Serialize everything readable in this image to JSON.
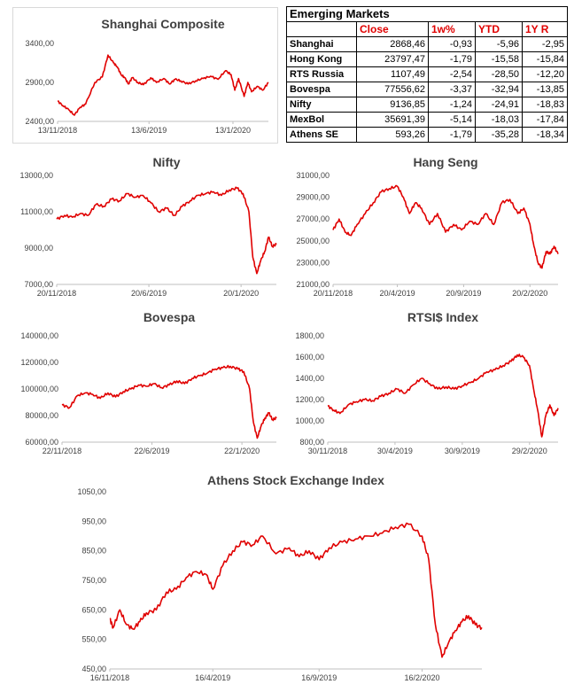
{
  "table": {
    "title": "Emerging Markets",
    "headers": [
      "Close",
      "1w%",
      "YTD",
      "1Y R"
    ],
    "rows": [
      {
        "name": "Shanghai",
        "close": "2868,46",
        "w1": "-0,93",
        "ytd": "-5,96",
        "y1": "-2,95"
      },
      {
        "name": "Hong Kong",
        "close": "23797,47",
        "w1": "-1,79",
        "ytd": "-15,58",
        "y1": "-15,84"
      },
      {
        "name": "RTS Russia",
        "close": "1107,49",
        "w1": "-2,54",
        "ytd": "-28,50",
        "y1": "-12,20"
      },
      {
        "name": "Bovespa",
        "close": "77556,62",
        "w1": "-3,37",
        "ytd": "-32,94",
        "y1": "-13,85"
      },
      {
        "name": "Nifty",
        "close": "9136,85",
        "w1": "-1,24",
        "ytd": "-24,91",
        "y1": "-18,83"
      },
      {
        "name": "MexBol",
        "close": "35691,39",
        "w1": "-5,14",
        "ytd": "-18,03",
        "y1": "-17,84"
      },
      {
        "name": "Athens SE",
        "close": "593,26",
        "w1": "-1,79",
        "ytd": "-35,28",
        "y1": "-18,34"
      }
    ]
  },
  "chart_data": [
    {
      "id": "shanghai",
      "type": "line",
      "title": "Shanghai Composite",
      "color": "#e00000",
      "ylim": [
        2400,
        3400
      ],
      "yticks": [
        "3400,00",
        "2900,00",
        "2400,00"
      ],
      "ytick_values": [
        3400,
        2900,
        2400
      ],
      "xticks": [
        "13/11/2018",
        "13/6/2019",
        "13/1/2020"
      ],
      "xtick_pos": [
        0.0,
        0.49,
        0.94
      ],
      "xlim_frac": [
        0,
        1.13
      ],
      "x": [
        0,
        0.03,
        0.06,
        0.09,
        0.12,
        0.15,
        0.2,
        0.24,
        0.27,
        0.3,
        0.32,
        0.34,
        0.36,
        0.38,
        0.4,
        0.43,
        0.46,
        0.5,
        0.53,
        0.57,
        0.6,
        0.63,
        0.66,
        0.7,
        0.74,
        0.78,
        0.82,
        0.86,
        0.9,
        0.93,
        0.95,
        0.97,
        1.0,
        1.02,
        1.04,
        1.07,
        1.1,
        1.13
      ],
      "values": [
        2660,
        2600,
        2550,
        2480,
        2580,
        2620,
        2900,
        2970,
        3250,
        3150,
        3100,
        3000,
        2960,
        2880,
        2960,
        2900,
        2870,
        2960,
        2900,
        2950,
        2880,
        2940,
        2920,
        2880,
        2920,
        2950,
        2980,
        2940,
        3050,
        3000,
        2800,
        2950,
        2720,
        2900,
        2780,
        2850,
        2800,
        2900
      ]
    },
    {
      "id": "nifty",
      "type": "line",
      "title": "Nifty",
      "color": "#e00000",
      "ylim": [
        7000,
        13000
      ],
      "yticks": [
        "13000,00",
        "11000,00",
        "9000,00",
        "7000,00"
      ],
      "ytick_values": [
        13000,
        11000,
        9000,
        7000
      ],
      "xticks": [
        "20/11/2018",
        "20/6/2019",
        "20/1/2020"
      ],
      "xtick_pos": [
        0.0,
        0.47,
        0.94
      ],
      "xlim_frac": [
        0,
        1.12
      ],
      "x": [
        0,
        0.04,
        0.08,
        0.12,
        0.16,
        0.2,
        0.24,
        0.28,
        0.32,
        0.36,
        0.4,
        0.44,
        0.48,
        0.52,
        0.56,
        0.6,
        0.64,
        0.68,
        0.72,
        0.76,
        0.8,
        0.84,
        0.88,
        0.92,
        0.95,
        0.98,
        1.0,
        1.02,
        1.04,
        1.06,
        1.08,
        1.1,
        1.12
      ],
      "values": [
        10600,
        10800,
        10700,
        10900,
        10800,
        11400,
        11300,
        11700,
        11600,
        12000,
        11800,
        11900,
        11500,
        11000,
        11200,
        10800,
        11300,
        11600,
        11900,
        12000,
        12100,
        11900,
        12200,
        12300,
        12000,
        11000,
        8500,
        7600,
        8300,
        8800,
        9600,
        9100,
        9200
      ]
    },
    {
      "id": "hangseng",
      "type": "line",
      "title": "Hang Seng",
      "color": "#e00000",
      "ylim": [
        21000,
        31000
      ],
      "yticks": [
        "31000,00",
        "29000,00",
        "27000,00",
        "25000,00",
        "23000,00",
        "21000,00"
      ],
      "ytick_values": [
        31000,
        29000,
        27000,
        25000,
        23000,
        21000
      ],
      "xticks": [
        "20/11/2018",
        "20/4/2019",
        "20/9/2019",
        "20/2/2020"
      ],
      "xtick_pos": [
        0.0,
        0.32,
        0.65,
        0.98
      ],
      "xlim_frac": [
        0,
        1.12
      ],
      "x": [
        0,
        0.03,
        0.06,
        0.09,
        0.12,
        0.16,
        0.2,
        0.24,
        0.28,
        0.32,
        0.35,
        0.38,
        0.41,
        0.44,
        0.48,
        0.52,
        0.56,
        0.6,
        0.64,
        0.68,
        0.72,
        0.76,
        0.8,
        0.84,
        0.88,
        0.92,
        0.95,
        0.98,
        1.0,
        1.02,
        1.04,
        1.06,
        1.08,
        1.1,
        1.12
      ],
      "values": [
        26000,
        27000,
        25800,
        25500,
        26500,
        27500,
        28500,
        29500,
        29800,
        30000,
        29000,
        27500,
        28500,
        28000,
        26500,
        27500,
        25800,
        26500,
        26000,
        26800,
        26500,
        27500,
        26500,
        28500,
        28800,
        27500,
        28000,
        26500,
        24500,
        23000,
        22500,
        24000,
        23800,
        24500,
        23800
      ]
    },
    {
      "id": "bovespa",
      "type": "line",
      "title": "Bovespa",
      "color": "#e00000",
      "ylim": [
        60000,
        140000
      ],
      "yticks": [
        "140000,00",
        "120000,00",
        "100000,00",
        "80000,00",
        "60000,00"
      ],
      "ytick_values": [
        140000,
        120000,
        100000,
        80000,
        60000
      ],
      "xticks": [
        "22/11/2018",
        "22/6/2019",
        "22/1/2020"
      ],
      "xtick_pos": [
        0.0,
        0.47,
        0.94
      ],
      "xlim_frac": [
        0,
        1.12
      ],
      "x": [
        0,
        0.04,
        0.08,
        0.12,
        0.16,
        0.2,
        0.24,
        0.28,
        0.32,
        0.36,
        0.4,
        0.44,
        0.48,
        0.52,
        0.56,
        0.6,
        0.64,
        0.68,
        0.72,
        0.76,
        0.8,
        0.84,
        0.88,
        0.92,
        0.95,
        0.98,
        1.0,
        1.02,
        1.04,
        1.06,
        1.08,
        1.1,
        1.12
      ],
      "values": [
        88000,
        86000,
        95000,
        97000,
        96000,
        93000,
        97000,
        94000,
        98000,
        100000,
        103000,
        102000,
        104000,
        101000,
        103000,
        106000,
        104000,
        108000,
        110000,
        112000,
        115000,
        116000,
        117000,
        115000,
        113000,
        100000,
        75000,
        63000,
        72000,
        78000,
        82000,
        77000,
        78000
      ]
    },
    {
      "id": "rtsi",
      "type": "line",
      "title": "RTSI$ Index",
      "color": "#e00000",
      "ylim": [
        800,
        1800
      ],
      "yticks": [
        "1800,00",
        "1600,00",
        "1400,00",
        "1200,00",
        "1000,00",
        "800,00"
      ],
      "ytick_values": [
        1800,
        1600,
        1400,
        1200,
        1000,
        800
      ],
      "xticks": [
        "30/11/2018",
        "30/4/2019",
        "30/9/2019",
        "29/2/2020"
      ],
      "xtick_pos": [
        0.0,
        0.33,
        0.66,
        0.99
      ],
      "xlim_frac": [
        0,
        1.13
      ],
      "x": [
        0,
        0.03,
        0.06,
        0.1,
        0.14,
        0.18,
        0.22,
        0.26,
        0.3,
        0.34,
        0.38,
        0.42,
        0.46,
        0.5,
        0.54,
        0.58,
        0.62,
        0.66,
        0.7,
        0.74,
        0.78,
        0.82,
        0.86,
        0.9,
        0.93,
        0.96,
        0.99,
        1.01,
        1.03,
        1.05,
        1.07,
        1.09,
        1.11,
        1.13
      ],
      "values": [
        1140,
        1100,
        1070,
        1150,
        1180,
        1200,
        1190,
        1230,
        1260,
        1300,
        1260,
        1340,
        1400,
        1350,
        1300,
        1320,
        1300,
        1330,
        1360,
        1400,
        1460,
        1480,
        1520,
        1560,
        1620,
        1600,
        1520,
        1300,
        1100,
        850,
        1050,
        1150,
        1050,
        1120
      ]
    },
    {
      "id": "athens",
      "type": "line",
      "title": "Athens Stock Exchange Index",
      "color": "#e00000",
      "ylim": [
        450,
        1050
      ],
      "yticks": [
        "1050,00",
        "950,00",
        "850,00",
        "750,00",
        "650,00",
        "550,00",
        "450,00"
      ],
      "ytick_values": [
        1050,
        950,
        850,
        750,
        650,
        550,
        450
      ],
      "xticks": [
        "16/11/2018",
        "16/4/2019",
        "16/9/2019",
        "16/2/2020"
      ],
      "xtick_pos": [
        0.0,
        0.31,
        0.63,
        0.94
      ],
      "xlim_frac": [
        0,
        1.12
      ],
      "x": [
        0,
        0.01,
        0.03,
        0.05,
        0.07,
        0.09,
        0.11,
        0.14,
        0.17,
        0.2,
        0.23,
        0.26,
        0.29,
        0.31,
        0.34,
        0.37,
        0.4,
        0.43,
        0.46,
        0.5,
        0.54,
        0.57,
        0.6,
        0.63,
        0.66,
        0.7,
        0.74,
        0.78,
        0.82,
        0.86,
        0.9,
        0.94,
        0.96,
        0.98,
        1.0,
        1.02,
        1.04,
        1.06,
        1.08,
        1.1,
        1.12
      ],
      "values": [
        620,
        590,
        650,
        600,
        585,
        610,
        640,
        650,
        710,
        720,
        760,
        780,
        770,
        720,
        800,
        850,
        880,
        870,
        900,
        840,
        860,
        830,
        850,
        820,
        860,
        880,
        890,
        900,
        910,
        930,
        940,
        900,
        820,
        600,
        490,
        540,
        580,
        610,
        630,
        600,
        590
      ]
    }
  ]
}
